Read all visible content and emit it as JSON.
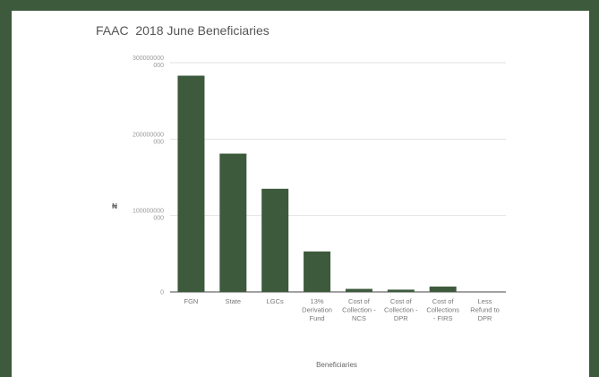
{
  "chart_data": {
    "type": "bar",
    "title": "FAAC  2018 June Beneficiaries",
    "xlabel": "Beneficiaries",
    "ylabel": "₦",
    "ylim": [
      0,
      300000000000
    ],
    "yticks": [
      {
        "value": 0,
        "label": [
          "0"
        ]
      },
      {
        "value": 100000000000,
        "label": [
          "100000000",
          "000"
        ]
      },
      {
        "value": 200000000000,
        "label": [
          "200000000",
          "000"
        ]
      },
      {
        "value": 300000000000,
        "label": [
          "300000000",
          "000"
        ]
      }
    ],
    "categories": [
      [
        "FGN"
      ],
      [
        "State"
      ],
      [
        "LGCs"
      ],
      [
        "13%",
        "Derivation",
        "Fund"
      ],
      [
        "Cost of",
        "Collection -",
        "NCS"
      ],
      [
        "Cost of",
        "Collection -",
        "DPR"
      ],
      [
        "Cost of",
        "Collections",
        "- FIRS"
      ],
      [
        "Less",
        "Refund to",
        "DPR"
      ]
    ],
    "values": [
      283000000000,
      181000000000,
      135000000000,
      53000000000,
      4000000000,
      3000000000,
      7000000000,
      0
    ],
    "bar_color": "#3d5a3c",
    "grid": true,
    "legend": "none"
  }
}
